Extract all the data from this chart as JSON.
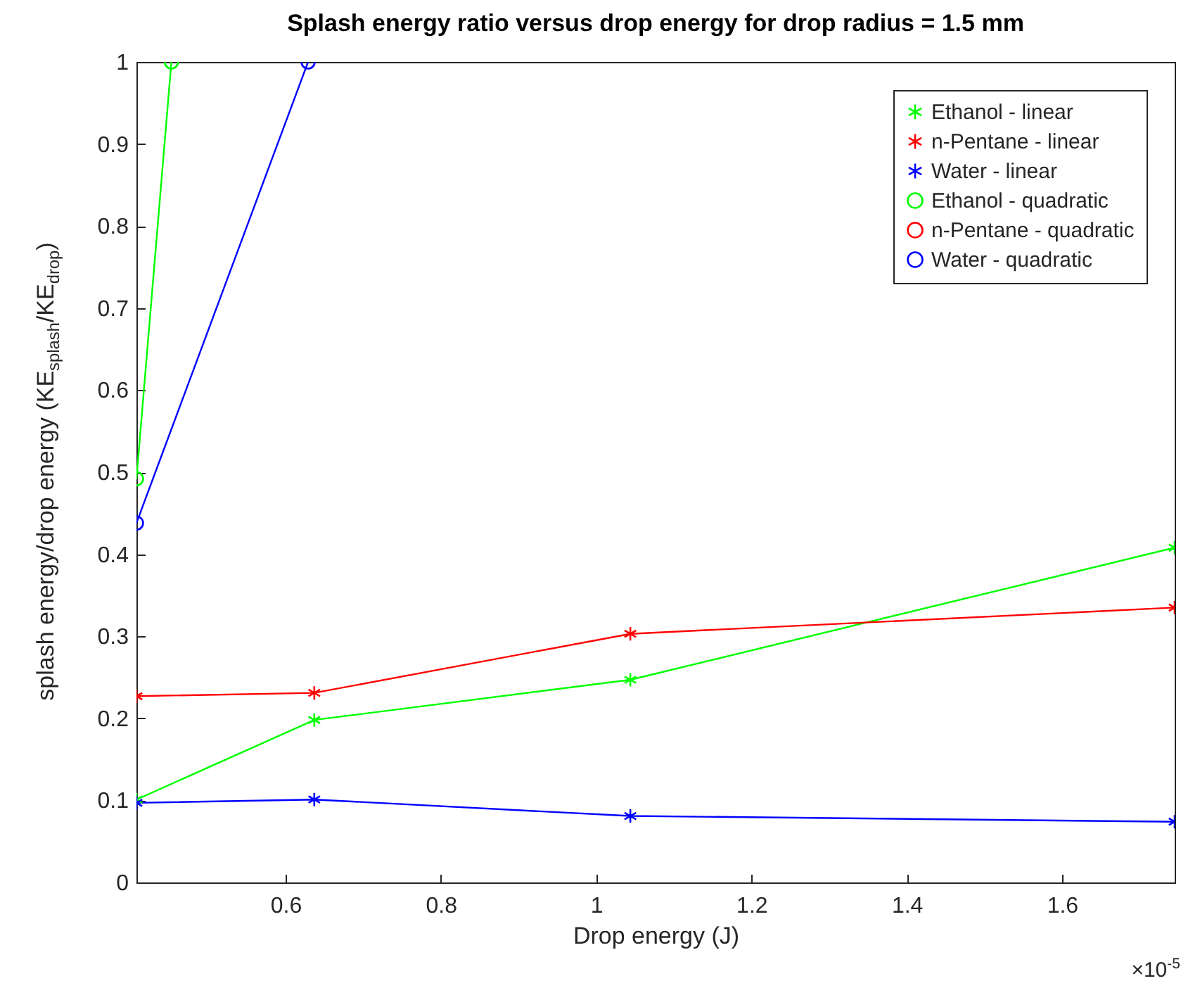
{
  "chart_data": {
    "type": "line",
    "title": "Splash energy ratio versus drop energy for drop radius = 1.5 mm",
    "xlabel": "Drop energy (J)",
    "ylabel": "splash energy/drop energy (KE$_{splash}$/KE$_{drop}$)",
    "x": [
      0.408,
      0.637,
      1.044,
      1.745
    ],
    "series": [
      {
        "name": "Ethanol - linear",
        "color": "#00ff00",
        "marker": "cross",
        "values": [
          0.101,
          0.198,
          0.247,
          0.408
        ]
      },
      {
        "name": "n-Pentane - linear",
        "color": "#ff0000",
        "marker": "cross",
        "values": [
          0.227,
          0.231,
          0.303,
          0.335
        ]
      },
      {
        "name": "Water - linear",
        "color": "#0000ff",
        "marker": "cross",
        "values": [
          0.097,
          0.101,
          0.081,
          0.074
        ]
      },
      {
        "name": "Ethanol - quadratic",
        "color": "#00ff00",
        "marker": "circle",
        "x": [
          0.408,
          0.453
        ],
        "values": [
          0.492,
          1
        ]
      },
      {
        "name": "n-Pentane - quadratic",
        "color": "#ff0000",
        "marker": "circle",
        "values": [
          null,
          null,
          null,
          null
        ]
      },
      {
        "name": "Water - quadratic",
        "color": "#0000ff",
        "marker": "circle",
        "x": [
          0.408,
          0.629
        ],
        "values": [
          0.438,
          1
        ]
      }
    ],
    "xlim": [
      0.408,
      1.745
    ],
    "xticks": [
      0.6,
      0.8,
      1,
      1.2,
      1.4,
      1.6
    ],
    "ylim": [
      0,
      1
    ],
    "yticks": [
      0,
      0.1,
      0.2,
      0.3,
      0.4,
      0.5,
      0.6,
      0.7,
      0.8,
      0.9,
      1
    ],
    "annotations": [
      "×10$^{-5}$"
    ],
    "legend": "top right",
    "grid": false,
    "line_style": "solid"
  }
}
